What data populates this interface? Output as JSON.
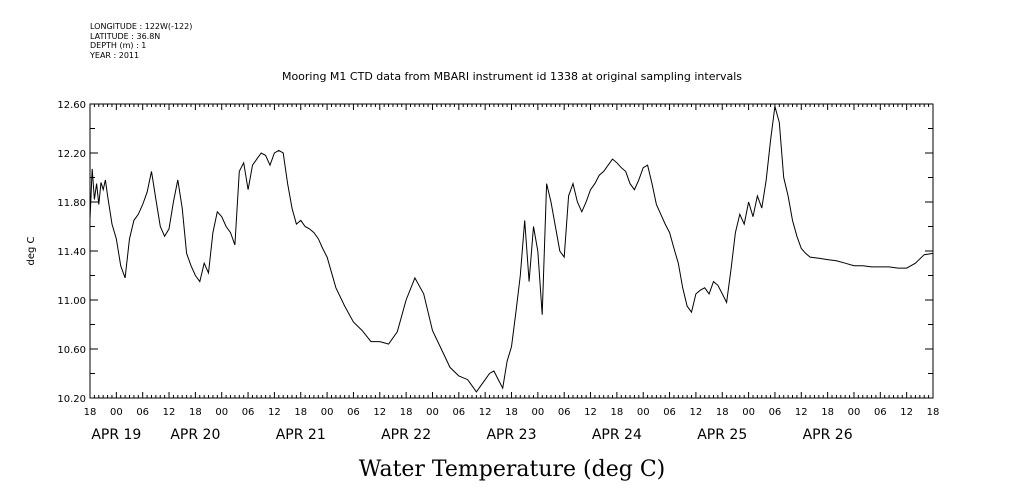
{
  "header": {
    "longitude": "LONGITUDE : 122W(-122)",
    "latitude": "LATITUDE : 36.8N",
    "depth": "DEPTH (m) : 1",
    "year": "YEAR : 2011"
  },
  "chart_data": {
    "type": "line",
    "title": "Mooring M1 CTD data from MBARI instrument id 1338 at original sampling intervals",
    "xlabel": "Water Temperature (deg C)",
    "ylabel": "deg C",
    "ylim": [
      10.2,
      12.6
    ],
    "xlim_hours": [
      -6,
      186
    ],
    "y_ticks": [
      "10.20",
      "10.60",
      "11.00",
      "11.40",
      "11.80",
      "12.20",
      "12.60"
    ],
    "y_tick_values": [
      10.2,
      10.6,
      11.0,
      11.4,
      11.8,
      12.2,
      12.6
    ],
    "hour_tick_labels": [
      "18",
      "00",
      "06",
      "12",
      "18",
      "00",
      "06",
      "12",
      "18",
      "00",
      "06",
      "12",
      "18",
      "00",
      "06",
      "12",
      "18",
      "00",
      "06",
      "12",
      "18",
      "00",
      "06",
      "12",
      "18",
      "00",
      "06",
      "12",
      "18",
      "00",
      "06",
      "12",
      "18"
    ],
    "date_labels": [
      "APR 19",
      "APR 20",
      "APR 21",
      "APR 22",
      "APR 23",
      "APR 24",
      "APR 25",
      "APR 26"
    ],
    "date_label_hours": [
      0,
      18,
      42,
      66,
      90,
      114,
      138,
      162
    ],
    "grid": false,
    "series": [
      {
        "x": [
          -6,
          -5.5,
          -5,
          -4.5,
          -4,
          -3.5,
          -3,
          -2.5,
          -2,
          -1,
          0,
          1,
          2,
          3,
          4,
          5,
          6,
          7,
          8,
          9,
          10,
          11,
          12,
          13,
          14,
          15,
          16,
          17,
          18,
          19,
          20,
          21,
          22,
          23,
          24,
          25,
          26,
          27,
          28,
          29,
          30,
          31,
          32,
          33,
          34,
          35,
          36,
          37,
          38,
          39,
          40,
          41,
          42,
          43,
          44,
          45,
          46,
          47,
          48,
          50,
          52,
          54,
          56,
          58,
          60,
          62,
          64,
          66,
          68,
          70,
          72,
          74,
          76,
          78,
          80,
          81,
          82,
          83,
          84,
          85,
          86,
          87,
          88,
          89,
          90,
          91,
          92,
          93,
          94,
          95,
          96,
          97,
          98,
          99,
          100,
          101,
          102,
          103,
          104,
          105,
          106,
          107,
          108,
          109,
          110,
          111,
          112,
          113,
          114,
          115,
          116,
          117,
          118,
          119,
          120,
          121,
          122,
          123,
          124,
          125,
          126,
          127,
          128,
          129,
          130,
          131,
          132,
          133,
          134,
          135,
          136,
          137,
          138,
          139,
          140,
          141,
          142,
          143,
          144,
          145,
          146,
          147,
          148,
          149,
          150,
          151,
          152,
          153,
          154,
          155,
          156,
          157,
          158,
          160,
          162,
          164,
          166,
          168,
          170,
          172,
          174,
          176,
          178,
          180,
          182,
          184,
          186
        ],
        "y": [
          11.66,
          12.07,
          11.82,
          11.95,
          11.78,
          11.96,
          11.9,
          11.98,
          11.85,
          11.62,
          11.5,
          11.28,
          11.18,
          11.5,
          11.65,
          11.7,
          11.78,
          11.88,
          12.05,
          11.82,
          11.6,
          11.52,
          11.58,
          11.8,
          11.98,
          11.75,
          11.38,
          11.28,
          11.2,
          11.15,
          11.3,
          11.22,
          11.55,
          11.72,
          11.68,
          11.6,
          11.55,
          11.45,
          12.05,
          12.12,
          11.9,
          12.1,
          12.15,
          12.2,
          12.18,
          12.1,
          12.2,
          12.22,
          12.2,
          11.95,
          11.75,
          11.62,
          11.65,
          11.6,
          11.58,
          11.55,
          11.5,
          11.42,
          11.35,
          11.1,
          10.95,
          10.82,
          10.75,
          10.66,
          10.66,
          10.64,
          10.74,
          11.0,
          11.18,
          11.05,
          10.75,
          10.6,
          10.45,
          10.38,
          10.35,
          10.3,
          10.25,
          10.3,
          10.35,
          10.4,
          10.42,
          10.35,
          10.28,
          10.5,
          10.62,
          10.9,
          11.2,
          11.65,
          11.15,
          11.6,
          11.4,
          10.88,
          11.95,
          11.8,
          11.6,
          11.4,
          11.35,
          11.85,
          11.95,
          11.8,
          11.72,
          11.8,
          11.9,
          11.95,
          12.02,
          12.05,
          12.1,
          12.15,
          12.12,
          12.08,
          12.05,
          11.95,
          11.9,
          11.98,
          12.08,
          12.1,
          11.95,
          11.78,
          11.7,
          11.62,
          11.55,
          11.42,
          11.3,
          11.1,
          10.95,
          10.9,
          11.05,
          11.08,
          11.1,
          11.05,
          11.15,
          11.12,
          11.05,
          10.98,
          11.25,
          11.55,
          11.7,
          11.62,
          11.8,
          11.68,
          11.85,
          11.75,
          11.98,
          12.3,
          12.58,
          12.45,
          12.0,
          11.85,
          11.65,
          11.52,
          11.42,
          11.38,
          11.35,
          11.34,
          11.33,
          11.32,
          11.3,
          11.28,
          11.28,
          11.27,
          11.27,
          11.27,
          11.26,
          11.26,
          11.3,
          11.37,
          11.38
        ]
      }
    ]
  }
}
